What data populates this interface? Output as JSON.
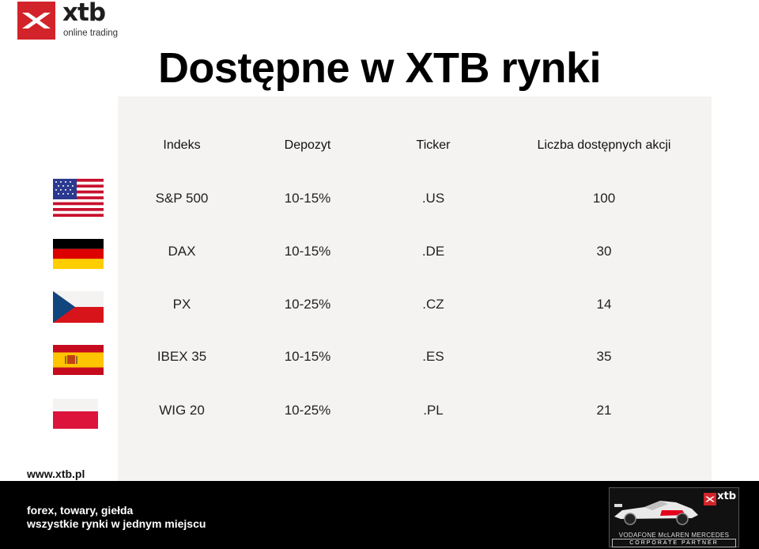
{
  "brand": {
    "name": "xtb",
    "tagline": "online trading"
  },
  "title": "Dostępne w XTB rynki",
  "table": {
    "headers": [
      "Indeks",
      "Depozyt",
      "Ticker",
      "Liczba dostępnych akcji"
    ],
    "rows": [
      {
        "flag": "usa-flag",
        "index": "S&P 500",
        "deposit": "10-15%",
        "ticker": ".US",
        "count": "100"
      },
      {
        "flag": "germany-flag",
        "index": "DAX",
        "deposit": "10-15%",
        "ticker": ".DE",
        "count": "30"
      },
      {
        "flag": "czech-flag",
        "index": "PX",
        "deposit": "10-25%",
        "ticker": ".CZ",
        "count": "14"
      },
      {
        "flag": "spain-flag",
        "index": "IBEX 35",
        "deposit": "10-15%",
        "ticker": ".ES",
        "count": "35"
      },
      {
        "flag": "poland-flag",
        "index": "WIG 20",
        "deposit": "10-25%",
        "ticker": ".PL",
        "count": "21"
      }
    ]
  },
  "website": "www.xtb.pl",
  "footer": {
    "line1": "forex, towary, giełda",
    "line2": "wszystkie rynki w jednym  miejscu"
  },
  "partner_badge": {
    "xtb": "xtb",
    "team": "VODAFONE McLAREN MERCEDES",
    "label": "CORPORATE PARTNER"
  },
  "colors": {
    "brand_red": "#d2232a",
    "panel": "#f4f3f1",
    "footer": "#000000"
  }
}
